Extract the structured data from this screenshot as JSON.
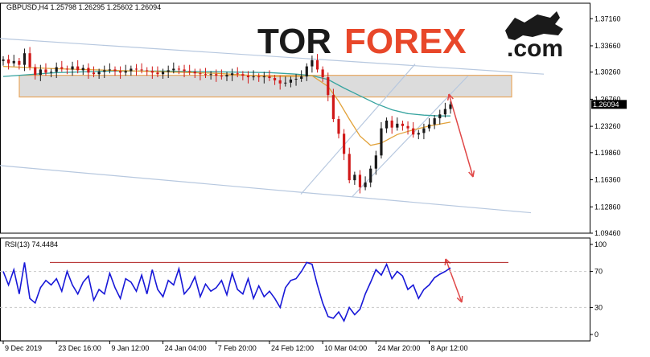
{
  "chart_data": [
    {
      "type": "line",
      "symbol_header": "GBPUSD,H4  1.25798  1.26295  1.25602  1.26094",
      "current_price": "1.26094",
      "ylim": [
        1.0946,
        1.3916
      ],
      "y_ticks": [
        "1.37160",
        "1.33660",
        "1.30260",
        "1.26760",
        "1.23260",
        "1.19860",
        "1.16360",
        "1.12860",
        "1.09460"
      ],
      "y_tick_values": [
        1.3716,
        1.3366,
        1.3026,
        1.2676,
        1.2326,
        1.1986,
        1.1636,
        1.1286,
        1.0946
      ],
      "x_ticks": [
        "9 Dec 2019",
        "23 Dec 16:00",
        "9 Jan 12:00",
        "24 Jan 04:00",
        "7 Feb 20:00",
        "24 Feb 12:00",
        "10 Mar 04:00",
        "24 Mar 20:00",
        "8 Apr 12:00"
      ],
      "x_tick_index": [
        0,
        10,
        20,
        30,
        40,
        50,
        60,
        70,
        80
      ],
      "price": [
        [
          0,
          1.319
        ],
        [
          1,
          1.314
        ],
        [
          2,
          1.317
        ],
        [
          3,
          1.312
        ],
        [
          4,
          1.327
        ],
        [
          5,
          1.309
        ],
        [
          6,
          1.299
        ],
        [
          7,
          1.306
        ],
        [
          8,
          1.302
        ],
        [
          9,
          1.303
        ],
        [
          10,
          1.309
        ],
        [
          11,
          1.307
        ],
        [
          12,
          1.306
        ],
        [
          13,
          1.31
        ],
        [
          14,
          1.305
        ],
        [
          15,
          1.308
        ],
        [
          16,
          1.302
        ],
        [
          17,
          1.3
        ],
        [
          18,
          1.303
        ],
        [
          19,
          1.305
        ],
        [
          20,
          1.306
        ],
        [
          21,
          1.304
        ],
        [
          22,
          1.302
        ],
        [
          23,
          1.304
        ],
        [
          24,
          1.307
        ],
        [
          25,
          1.306
        ],
        [
          26,
          1.305
        ],
        [
          27,
          1.304
        ],
        [
          28,
          1.302
        ],
        [
          29,
          1.3
        ],
        [
          30,
          1.303
        ],
        [
          31,
          1.305
        ],
        [
          32,
          1.307
        ],
        [
          33,
          1.306
        ],
        [
          34,
          1.304
        ],
        [
          35,
          1.303
        ],
        [
          36,
          1.301
        ],
        [
          37,
          1.3
        ],
        [
          38,
          1.299
        ],
        [
          39,
          1.3
        ],
        [
          40,
          1.298
        ],
        [
          41,
          1.297
        ],
        [
          42,
          1.299
        ],
        [
          43,
          1.301
        ],
        [
          44,
          1.3
        ],
        [
          45,
          1.298
        ],
        [
          46,
          1.296
        ],
        [
          47,
          1.297
        ],
        [
          48,
          1.296
        ],
        [
          49,
          1.297
        ],
        [
          50,
          1.295
        ],
        [
          51,
          1.292
        ],
        [
          52,
          1.288
        ],
        [
          53,
          1.289
        ],
        [
          54,
          1.293
        ],
        [
          55,
          1.294
        ],
        [
          56,
          1.297
        ],
        [
          57,
          1.31
        ],
        [
          58,
          1.318
        ],
        [
          59,
          1.306
        ],
        [
          60,
          1.296
        ],
        [
          61,
          1.273
        ],
        [
          62,
          1.242
        ],
        [
          63,
          1.223
        ],
        [
          64,
          1.197
        ],
        [
          65,
          1.163
        ],
        [
          66,
          1.17
        ],
        [
          67,
          1.154
        ],
        [
          68,
          1.16
        ],
        [
          69,
          1.178
        ],
        [
          70,
          1.195
        ],
        [
          71,
          1.23
        ],
        [
          72,
          1.24
        ],
        [
          73,
          1.231
        ],
        [
          74,
          1.236
        ],
        [
          75,
          1.233
        ],
        [
          76,
          1.23
        ],
        [
          77,
          1.222
        ],
        [
          78,
          1.224
        ],
        [
          79,
          1.23
        ],
        [
          80,
          1.235
        ],
        [
          81,
          1.243
        ],
        [
          82,
          1.248
        ],
        [
          83,
          1.255
        ],
        [
          84,
          1.261
        ]
      ],
      "ma_teal": [
        [
          0,
          1.297
        ],
        [
          10,
          1.302
        ],
        [
          20,
          1.304
        ],
        [
          30,
          1.304
        ],
        [
          40,
          1.303
        ],
        [
          50,
          1.302
        ],
        [
          55,
          1.3
        ],
        [
          58,
          1.298
        ],
        [
          61,
          1.293
        ],
        [
          64,
          1.282
        ],
        [
          67,
          1.272
        ],
        [
          70,
          1.262
        ],
        [
          73,
          1.254
        ],
        [
          76,
          1.249
        ],
        [
          79,
          1.247
        ],
        [
          82,
          1.246
        ],
        [
          84,
          1.246
        ]
      ],
      "ma_orange": [
        [
          0,
          1.31
        ],
        [
          10,
          1.307
        ],
        [
          20,
          1.305
        ],
        [
          30,
          1.303
        ],
        [
          40,
          1.301
        ],
        [
          50,
          1.297
        ],
        [
          55,
          1.297
        ],
        [
          58,
          1.298
        ],
        [
          61,
          1.284
        ],
        [
          63,
          1.265
        ],
        [
          65,
          1.242
        ],
        [
          67,
          1.22
        ],
        [
          69,
          1.208
        ],
        [
          71,
          1.211
        ],
        [
          74,
          1.222
        ],
        [
          77,
          1.228
        ],
        [
          80,
          1.233
        ],
        [
          84,
          1.238
        ]
      ],
      "rsi_title": "RSI(13) 74.4484",
      "rsi_ylim": [
        0,
        100
      ],
      "rsi_ticks": [
        "100",
        "70",
        "30",
        "0"
      ],
      "rsi_tick_values": [
        100,
        70,
        30,
        0
      ],
      "rsi": [
        [
          0,
          70
        ],
        [
          1,
          55
        ],
        [
          2,
          72
        ],
        [
          3,
          45
        ],
        [
          4,
          80
        ],
        [
          5,
          40
        ],
        [
          6,
          35
        ],
        [
          7,
          52
        ],
        [
          8,
          60
        ],
        [
          9,
          55
        ],
        [
          10,
          62
        ],
        [
          11,
          48
        ],
        [
          12,
          70
        ],
        [
          13,
          55
        ],
        [
          14,
          45
        ],
        [
          15,
          58
        ],
        [
          16,
          65
        ],
        [
          17,
          38
        ],
        [
          18,
          50
        ],
        [
          19,
          45
        ],
        [
          20,
          68
        ],
        [
          21,
          52
        ],
        [
          22,
          40
        ],
        [
          23,
          62
        ],
        [
          24,
          58
        ],
        [
          25,
          48
        ],
        [
          26,
          66
        ],
        [
          27,
          45
        ],
        [
          28,
          72
        ],
        [
          29,
          50
        ],
        [
          30,
          42
        ],
        [
          31,
          60
        ],
        [
          32,
          55
        ],
        [
          33,
          73
        ],
        [
          34,
          45
        ],
        [
          35,
          52
        ],
        [
          36,
          64
        ],
        [
          37,
          42
        ],
        [
          38,
          56
        ],
        [
          39,
          48
        ],
        [
          40,
          52
        ],
        [
          41,
          60
        ],
        [
          42,
          44
        ],
        [
          43,
          68
        ],
        [
          44,
          50
        ],
        [
          45,
          45
        ],
        [
          46,
          62
        ],
        [
          47,
          40
        ],
        [
          48,
          54
        ],
        [
          49,
          42
        ],
        [
          50,
          48
        ],
        [
          51,
          40
        ],
        [
          52,
          30
        ],
        [
          53,
          52
        ],
        [
          54,
          60
        ],
        [
          55,
          62
        ],
        [
          56,
          70
        ],
        [
          57,
          80
        ],
        [
          58,
          78
        ],
        [
          59,
          55
        ],
        [
          60,
          35
        ],
        [
          61,
          20
        ],
        [
          62,
          18
        ],
        [
          63,
          25
        ],
        [
          64,
          15
        ],
        [
          65,
          30
        ],
        [
          66,
          22
        ],
        [
          67,
          28
        ],
        [
          68,
          45
        ],
        [
          69,
          58
        ],
        [
          70,
          72
        ],
        [
          71,
          66
        ],
        [
          72,
          78
        ],
        [
          73,
          62
        ],
        [
          74,
          70
        ],
        [
          75,
          65
        ],
        [
          76,
          50
        ],
        [
          77,
          55
        ],
        [
          78,
          40
        ],
        [
          79,
          50
        ],
        [
          80,
          55
        ],
        [
          81,
          63
        ],
        [
          82,
          67
        ],
        [
          83,
          70
        ],
        [
          84,
          74
        ]
      ],
      "rsi_level_line": 80
    }
  ],
  "logo": {
    "tor": "TOR",
    "forex": "FOREX",
    "com": ".com"
  },
  "colors": {
    "price_up": "#1a1a1a",
    "price_down": "#d01818",
    "ma_teal": "#37a4a0",
    "ma_orange": "#e2a23a",
    "channel": "#b7c8df",
    "resistance_box": "#dcdcdc",
    "resistance_border": "#e8a860",
    "arrow": "#e04848",
    "rsi_line": "#1818d8",
    "rsi_level": "#b02020",
    "current_price_bg": "#000000"
  }
}
